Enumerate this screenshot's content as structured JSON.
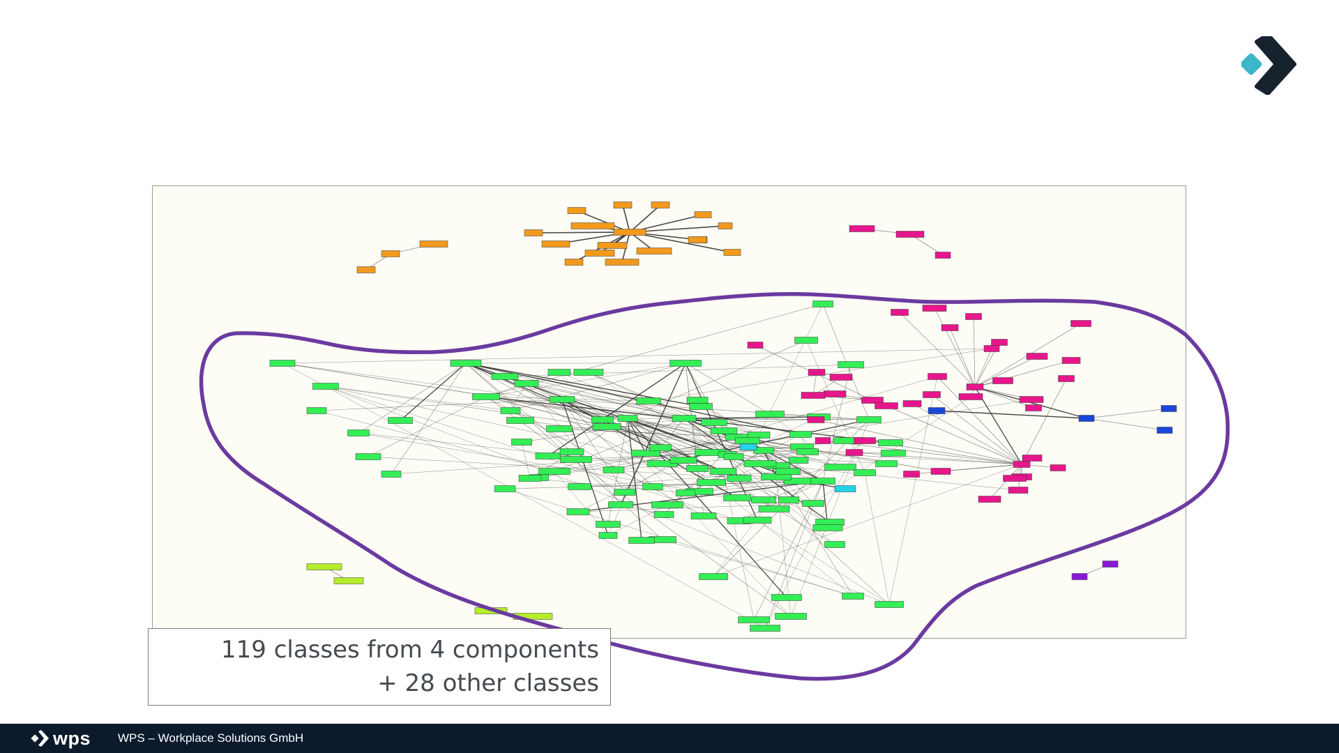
{
  "caption": {
    "line1": "119 classes from 4 components",
    "line2": "+ 28 other classes"
  },
  "footer": {
    "brand": "wps",
    "company": "WPS – Workplace Solutions GmbH"
  },
  "colors": {
    "orange": "#f39a1e",
    "green": "#33ee55",
    "magenta": "#e8168c",
    "blue": "#1948d8",
    "cyan": "#22d4e8",
    "lime": "#b5ec2c",
    "purple": "#8a19d8",
    "outline": "#6a3aa0",
    "frame_bg": "#fdfcf5",
    "footer_bg": "#0c1a2c",
    "logo_teal": "#3cb6c8",
    "logo_dark": "#17222f"
  },
  "icons": {
    "logo": "wps-arrow-logo",
    "footer_logo": "wps-arrow-icon"
  }
}
